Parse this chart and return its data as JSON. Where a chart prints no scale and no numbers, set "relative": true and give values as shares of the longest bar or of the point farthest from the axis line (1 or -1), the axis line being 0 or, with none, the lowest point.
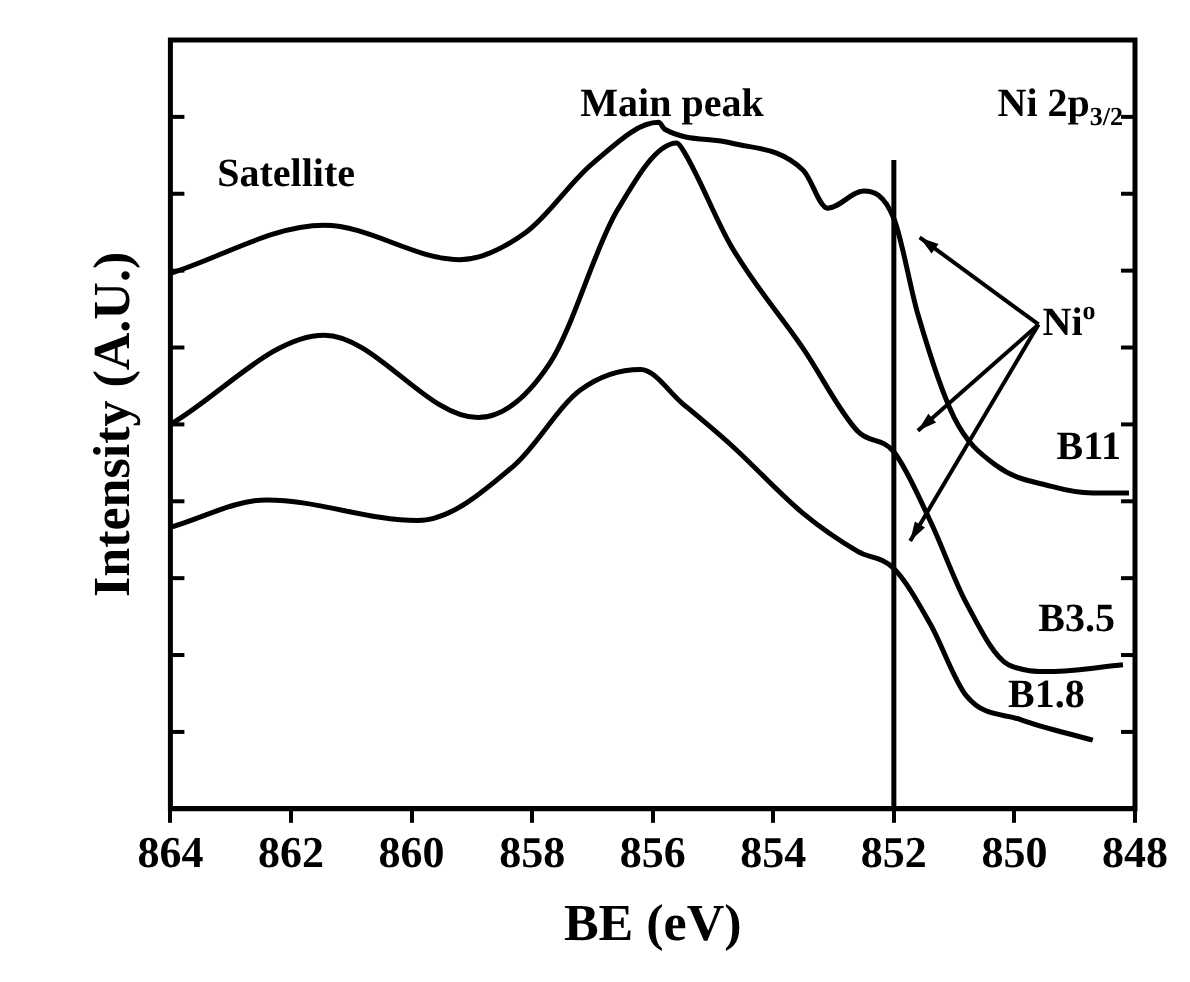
{
  "chart_data": {
    "type": "line",
    "xlabel": "BE (eV)",
    "ylabel": "Intensity (A.U.)",
    "relative": true,
    "xlim": [
      864,
      848
    ],
    "xticks": [
      864,
      862,
      860,
      858,
      856,
      854,
      852,
      850,
      848
    ],
    "grid": false,
    "legend": "right",
    "marker": "none",
    "line_style": "solid",
    "series": [
      {
        "name": "B11",
        "color": "#000000",
        "x": [
          864.0,
          861.45,
          859.2,
          858.1,
          857.0,
          855.9,
          855.8,
          854.7,
          853.5,
          853.1,
          852.5,
          852.0,
          851.6,
          851.0,
          850.3,
          849.4,
          848.7,
          848.1
        ],
        "values": [
          0.78,
          0.85,
          0.8,
          0.84,
          0.94,
          1.0,
          0.99,
          0.97,
          0.93,
          0.875,
          0.9,
          0.86,
          0.72,
          0.57,
          0.5,
          0.47,
          0.46,
          0.46
        ]
      },
      {
        "name": "B3.5",
        "color": "#000000",
        "x": [
          864.0,
          861.45,
          858.9,
          857.7,
          856.6,
          855.6,
          855.5,
          854.7,
          853.5,
          852.6,
          852.0,
          851.4,
          850.8,
          850.1,
          849.4,
          848.2
        ],
        "values": [
          0.56,
          0.69,
          0.57,
          0.65,
          0.87,
          0.97,
          0.96,
          0.82,
          0.67,
          0.55,
          0.52,
          0.42,
          0.3,
          0.21,
          0.2,
          0.21
        ]
      },
      {
        "name": "B1.8",
        "color": "#000000",
        "x": [
          864.0,
          862.4,
          859.9,
          858.3,
          857.2,
          856.2,
          855.5,
          854.7,
          853.5,
          852.6,
          852.0,
          851.4,
          850.8,
          849.9,
          848.7
        ],
        "values": [
          0.41,
          0.45,
          0.42,
          0.5,
          0.61,
          0.64,
          0.59,
          0.53,
          0.43,
          0.375,
          0.35,
          0.27,
          0.165,
          0.13,
          0.1
        ]
      }
    ],
    "ref_lines": [
      {
        "axis": "x",
        "value": 852,
        "color": "#000000"
      }
    ],
    "annotations": [
      "Satellite",
      "Main peak",
      "Ni 2p$_{3/2}$",
      "Ni$^{o}$"
    ]
  }
}
